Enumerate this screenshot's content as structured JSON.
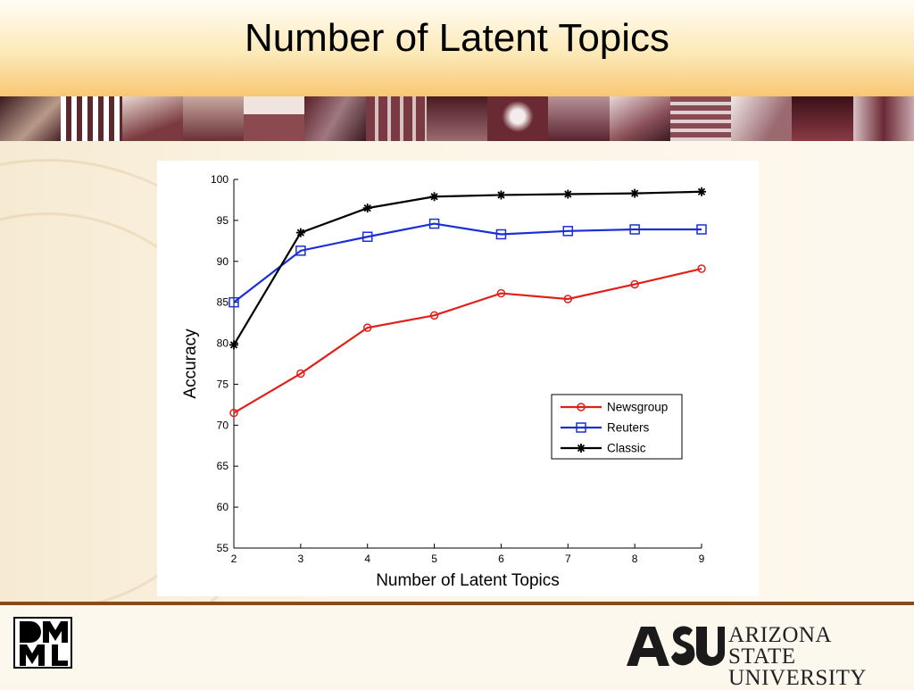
{
  "slide": {
    "title": "Number of Latent Topics"
  },
  "logos": {
    "left_text": "DMML",
    "asu_mark": "ASU",
    "asu_line1": "ARIZONA STATE",
    "asu_line2": "UNIVERSITY"
  },
  "colors": {
    "header_gold": "#f7c873",
    "strip_maroon": "#6a2a33",
    "footer_line": "#8a4a1a",
    "newsgroup": "#e0201a",
    "reuters": "#1a2fd6",
    "classic": "#000000"
  },
  "chart_data": {
    "type": "line",
    "title": "",
    "xlabel": "Number of Latent Topics",
    "ylabel": "Accuracy",
    "x": [
      2,
      3,
      4,
      5,
      6,
      7,
      8,
      9
    ],
    "xlim": [
      2,
      9
    ],
    "ylim": [
      55,
      100
    ],
    "xticks": [
      "2",
      "3",
      "4",
      "5",
      "6",
      "7",
      "8",
      "9"
    ],
    "yticks": [
      "55",
      "60",
      "65",
      "70",
      "75",
      "80",
      "85",
      "90",
      "95",
      "100"
    ],
    "grid": false,
    "legend_position": "lower-right",
    "series": [
      {
        "name": "Newsgroup",
        "color": "#e0201a",
        "marker": "circle",
        "values": [
          71.5,
          76.3,
          81.9,
          83.4,
          86.1,
          85.4,
          87.2,
          89.1
        ]
      },
      {
        "name": "Reuters",
        "color": "#1a2fd6",
        "marker": "square",
        "values": [
          85.0,
          91.3,
          93.0,
          94.6,
          93.3,
          93.7,
          93.9,
          93.9
        ]
      },
      {
        "name": "Classic",
        "color": "#000000",
        "marker": "star",
        "values": [
          79.8,
          93.5,
          96.5,
          97.9,
          98.1,
          98.2,
          98.3,
          98.5
        ]
      }
    ]
  }
}
